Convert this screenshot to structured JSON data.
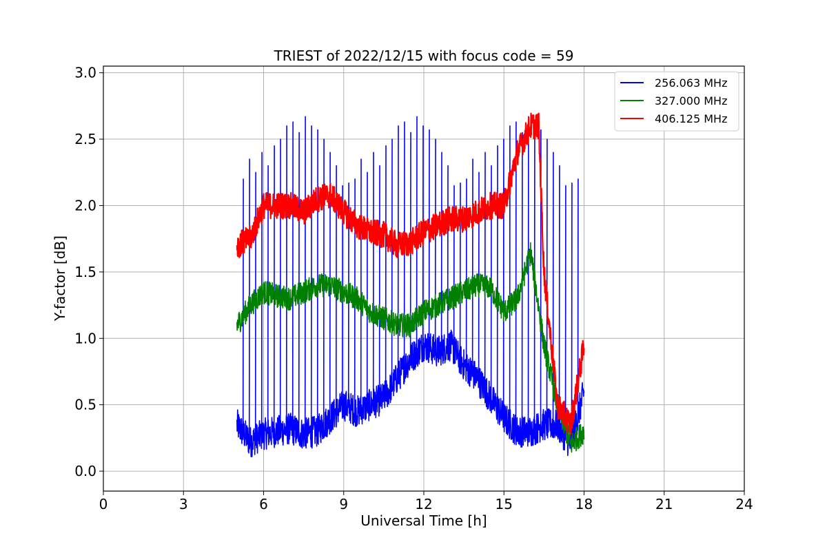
{
  "chart_data": {
    "type": "line",
    "title": "TRIEST of 2022/12/15 with focus code = 59",
    "xlabel": "Universal Time [h]",
    "ylabel": "Y-factor [dB]",
    "xlim": [
      0,
      24
    ],
    "ylim": [
      -0.15,
      3.05
    ],
    "xticks": [
      0,
      3,
      6,
      9,
      12,
      15,
      18,
      21,
      24
    ],
    "yticks": [
      0.0,
      0.5,
      1.0,
      1.5,
      2.0,
      2.5,
      3.0
    ],
    "ytick_labels": [
      "0.0",
      "0.5",
      "1.0",
      "1.5",
      "2.0",
      "2.5",
      "3.0"
    ],
    "grid": true,
    "legend_position": "top-right",
    "series": [
      {
        "name": "256.063 MHz",
        "color": "#0000ff",
        "x": [
          5.0,
          5.5,
          6.0,
          6.5,
          7.0,
          7.5,
          8.0,
          8.5,
          9.0,
          9.5,
          10.0,
          10.5,
          11.0,
          11.5,
          12.0,
          12.5,
          13.0,
          13.5,
          14.0,
          14.5,
          15.0,
          15.5,
          16.0,
          16.5,
          17.0,
          17.5,
          18.0
        ],
        "y": [
          0.35,
          0.22,
          0.28,
          0.3,
          0.32,
          0.28,
          0.3,
          0.4,
          0.5,
          0.45,
          0.5,
          0.55,
          0.7,
          0.85,
          0.95,
          0.9,
          0.95,
          0.8,
          0.7,
          0.55,
          0.4,
          0.3,
          0.3,
          0.35,
          0.35,
          0.2,
          0.6
        ],
        "spike_peaks": [
          2.2,
          2.35,
          2.25,
          2.4,
          2.3,
          2.45,
          2.5,
          2.6,
          2.63,
          2.55,
          2.67,
          2.6,
          2.57,
          2.5,
          2.4,
          2.3,
          2.15,
          2.17
        ]
      },
      {
        "name": "327.000 MHz",
        "color": "#008000",
        "x": [
          5.0,
          5.5,
          6.0,
          6.5,
          7.0,
          7.5,
          8.0,
          8.5,
          9.0,
          9.5,
          10.0,
          10.5,
          11.0,
          11.5,
          12.0,
          12.5,
          13.0,
          13.5,
          14.0,
          14.5,
          15.0,
          15.5,
          16.0,
          16.5,
          17.0,
          17.5,
          18.0
        ],
        "y": [
          1.1,
          1.25,
          1.35,
          1.32,
          1.3,
          1.35,
          1.4,
          1.4,
          1.35,
          1.3,
          1.2,
          1.15,
          1.1,
          1.1,
          1.2,
          1.25,
          1.3,
          1.35,
          1.4,
          1.38,
          1.2,
          1.3,
          1.65,
          0.95,
          0.5,
          0.2,
          0.3
        ]
      },
      {
        "name": "406.125 MHz",
        "color": "#ff0000",
        "x": [
          5.0,
          5.5,
          6.0,
          6.5,
          7.0,
          7.5,
          8.0,
          8.5,
          9.0,
          9.5,
          10.0,
          10.5,
          11.0,
          11.5,
          12.0,
          12.5,
          13.0,
          13.5,
          14.0,
          14.5,
          15.0,
          15.5,
          16.0,
          16.3,
          16.5,
          17.0,
          17.5,
          18.0
        ],
        "y": [
          1.7,
          1.75,
          2.0,
          2.0,
          2.0,
          1.95,
          2.05,
          2.08,
          1.95,
          1.85,
          1.8,
          1.78,
          1.7,
          1.72,
          1.8,
          1.85,
          1.9,
          1.9,
          1.95,
          2.0,
          2.0,
          2.4,
          2.6,
          2.6,
          1.5,
          0.5,
          0.35,
          0.95
        ]
      }
    ]
  }
}
